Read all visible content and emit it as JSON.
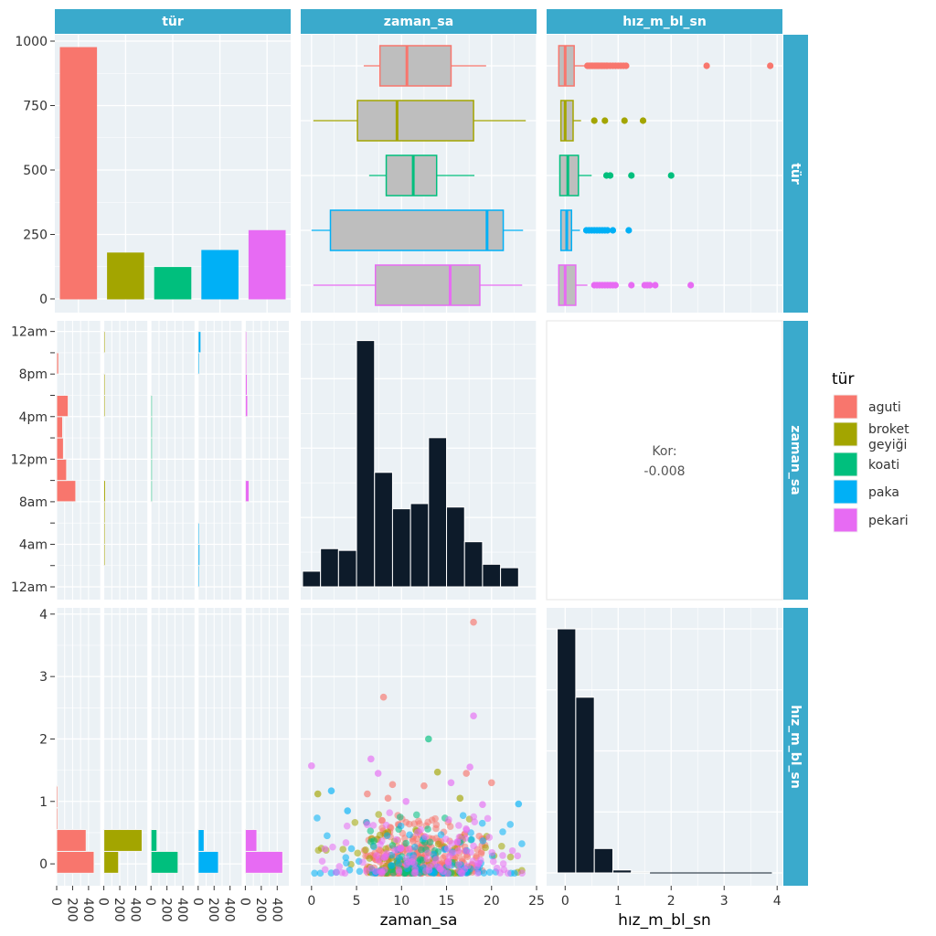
{
  "chart_data": {
    "type": "scatter-matrix",
    "variables": [
      "tür",
      "zaman_sa",
      "hız_m_bl_sn"
    ],
    "strip_color": "#3AAACC",
    "legend": {
      "title": "tür",
      "position": "right",
      "entries": [
        {
          "label": "aguti",
          "color": "#F8766D"
        },
        {
          "label": "broket geyiği",
          "color": "#A3A500"
        },
        {
          "label": "koati",
          "color": "#00BF7D"
        },
        {
          "label": "paka",
          "color": "#00B0F6"
        },
        {
          "label": "pekari",
          "color": "#E76BF3"
        }
      ]
    },
    "species": [
      "aguti",
      "broket geyiği",
      "koati",
      "paka",
      "pekari"
    ],
    "colors": [
      "#F8766D",
      "#A3A500",
      "#00BF7D",
      "#00B0F6",
      "#E76BF3"
    ],
    "counts": {
      "values": [
        975,
        178,
        122,
        188,
        265
      ],
      "ylim": [
        0,
        1050
      ],
      "yticks": [
        0,
        250,
        500,
        750,
        1000
      ]
    },
    "zaman_ticks": {
      "values": [
        0,
        5,
        10,
        15,
        20,
        25
      ],
      "labels": [
        "0",
        "5",
        "10",
        "15",
        "20",
        "25"
      ],
      "lim": [
        -1.2,
        25
      ]
    },
    "time_ticks": {
      "values": [
        0,
        4,
        8,
        12,
        16,
        20,
        24
      ],
      "labels": [
        "12am",
        "4am",
        "8am",
        "12pm",
        "4pm",
        "8pm",
        "12am"
      ],
      "lim": [
        -1.2,
        25
      ]
    },
    "hiz_ticks": {
      "values": [
        0,
        1,
        2,
        3,
        4
      ],
      "labels": [
        "0",
        "1",
        "2",
        "3",
        "4"
      ],
      "lim": [
        -0.35,
        4.1
      ]
    },
    "facet_count_ticks": {
      "values": [
        0,
        200,
        400
      ],
      "labels": [
        "0",
        "200",
        "400"
      ],
      "max": 500
    },
    "box_zaman": [
      {
        "q1": 7.6,
        "med": 10.6,
        "q3": 15.5,
        "lo": 5.8,
        "hi": 19.4
      },
      {
        "q1": 5.1,
        "med": 9.5,
        "q3": 18.0,
        "lo": 0.2,
        "hi": 23.8
      },
      {
        "q1": 8.3,
        "med": 11.3,
        "q3": 13.9,
        "lo": 6.4,
        "hi": 18.1
      },
      {
        "q1": 2.1,
        "med": 19.5,
        "q3": 21.3,
        "lo": 0.0,
        "hi": 23.5
      },
      {
        "q1": 7.1,
        "med": 15.4,
        "q3": 18.7,
        "lo": 0.2,
        "hi": 23.4
      }
    ],
    "box_hiz": [
      {
        "q1": -0.12,
        "med": 0.0,
        "q3": 0.17,
        "lo": -0.12,
        "hi": 0.37,
        "out": [
          0.42,
          0.45,
          0.48,
          0.5,
          0.52,
          0.55,
          0.58,
          0.6,
          0.62,
          0.65,
          0.68,
          0.7,
          0.72,
          0.75,
          0.78,
          0.8,
          0.85,
          0.9,
          0.95,
          1.0,
          1.05,
          1.1,
          1.15,
          2.67,
          3.87
        ]
      },
      {
        "q1": -0.08,
        "med": 0.0,
        "q3": 0.15,
        "lo": -0.08,
        "hi": 0.3,
        "out": [
          0.55,
          0.75,
          1.12,
          1.47
        ]
      },
      {
        "q1": -0.1,
        "med": 0.05,
        "q3": 0.25,
        "lo": -0.1,
        "hi": 0.5,
        "out": [
          0.78,
          0.85,
          1.25,
          2.0
        ]
      },
      {
        "q1": -0.08,
        "med": 0.03,
        "q3": 0.12,
        "lo": -0.08,
        "hi": 0.28,
        "out": [
          0.4,
          0.45,
          0.5,
          0.55,
          0.6,
          0.65,
          0.7,
          0.75,
          0.8,
          0.9,
          1.2
        ]
      },
      {
        "q1": -0.12,
        "med": 0.0,
        "q3": 0.2,
        "lo": -0.12,
        "hi": 0.42,
        "out": [
          0.55,
          0.6,
          0.65,
          0.7,
          0.75,
          0.8,
          0.85,
          0.9,
          0.95,
          1.25,
          1.5,
          1.55,
          1.6,
          1.7,
          2.37
        ]
      }
    ],
    "hist_zaman": {
      "bin_starts": [
        0,
        2,
        4,
        6,
        8,
        10,
        12,
        14,
        16,
        18,
        20,
        22
      ],
      "bin_width": 2,
      "counts": [
        45,
        110,
        105,
        710,
        330,
        225,
        240,
        430,
        230,
        130,
        65,
        55
      ],
      "ymax": 730
    },
    "hist_hiz": {
      "bin_starts": [
        -0.15,
        0.2,
        0.55,
        0.9,
        1.25
      ],
      "bin_width": 0.35,
      "counts": [
        1000,
        720,
        100,
        12,
        4
      ],
      "ymax": 1030
    },
    "facet_time_bins": [
      [
        {
          "y": 8,
          "c": 240
        },
        {
          "y": 10,
          "c": 125
        },
        {
          "y": 12,
          "c": 85
        },
        {
          "y": 14,
          "c": 75
        },
        {
          "y": 16,
          "c": 145
        },
        {
          "y": 20,
          "c": 25
        }
      ],
      [
        {
          "y": 2,
          "c": 12
        },
        {
          "y": 4,
          "c": 10
        },
        {
          "y": 6,
          "c": 8
        },
        {
          "y": 8,
          "c": 22
        },
        {
          "y": 16,
          "c": 14
        },
        {
          "y": 18,
          "c": 8
        },
        {
          "y": 22,
          "c": 6
        }
      ],
      [
        {
          "y": 8,
          "c": 10
        },
        {
          "y": 10,
          "c": 12
        },
        {
          "y": 12,
          "c": 10
        },
        {
          "y": 14,
          "c": 8
        },
        {
          "y": 16,
          "c": 10
        }
      ],
      [
        {
          "y": 0,
          "c": 8
        },
        {
          "y": 2,
          "c": 22
        },
        {
          "y": 4,
          "c": 12
        },
        {
          "y": 20,
          "c": 18
        },
        {
          "y": 22,
          "c": 35
        }
      ],
      [
        {
          "y": 8,
          "c": 48
        },
        {
          "y": 16,
          "c": 30
        },
        {
          "y": 18,
          "c": 25
        },
        {
          "y": 20,
          "c": 12
        },
        {
          "y": 22,
          "c": 8
        }
      ]
    ],
    "facet_hiz_bins": [
      [
        {
          "y": -0.15,
          "c": 470
        },
        {
          "y": 0.2,
          "c": 370
        },
        {
          "y": 0.55,
          "c": 10
        },
        {
          "y": 0.9,
          "c": 4
        }
      ],
      [
        {
          "y": -0.15,
          "c": 185
        },
        {
          "y": 0.2,
          "c": 480
        }
      ],
      [
        {
          "y": -0.15,
          "c": 340
        },
        {
          "y": 0.2,
          "c": 75
        }
      ],
      [
        {
          "y": -0.15,
          "c": 255
        },
        {
          "y": 0.2,
          "c": 75
        }
      ],
      [
        {
          "y": -0.15,
          "c": 470
        },
        {
          "y": 0.2,
          "c": 145
        }
      ]
    ],
    "scatter_outliers": [
      {
        "x": 0.0,
        "y": 1.57,
        "s": 4
      },
      {
        "x": 0.7,
        "y": 1.12,
        "s": 1
      },
      {
        "x": 2.2,
        "y": 1.17,
        "s": 3
      },
      {
        "x": 6.2,
        "y": 1.12,
        "s": 0
      },
      {
        "x": 6.6,
        "y": 1.68,
        "s": 4
      },
      {
        "x": 7.4,
        "y": 1.45,
        "s": 4
      },
      {
        "x": 8.0,
        "y": 2.67,
        "s": 0
      },
      {
        "x": 9.0,
        "y": 1.27,
        "s": 0
      },
      {
        "x": 13.0,
        "y": 2.0,
        "s": 2
      },
      {
        "x": 12.5,
        "y": 1.25,
        "s": 0
      },
      {
        "x": 14.0,
        "y": 1.47,
        "s": 1
      },
      {
        "x": 17.2,
        "y": 1.45,
        "s": 0
      },
      {
        "x": 17.6,
        "y": 1.55,
        "s": 4
      },
      {
        "x": 18.0,
        "y": 3.87,
        "s": 0
      },
      {
        "x": 18.0,
        "y": 2.37,
        "s": 4
      },
      {
        "x": 23.0,
        "y": 0.96,
        "s": 3
      },
      {
        "x": 10.5,
        "y": 1.0,
        "s": 4
      },
      {
        "x": 15.5,
        "y": 1.3,
        "s": 4
      },
      {
        "x": 16.5,
        "y": 1.05,
        "s": 1
      },
      {
        "x": 19.0,
        "y": 0.95,
        "s": 4
      },
      {
        "x": 8.5,
        "y": 1.05,
        "s": 0
      },
      {
        "x": 4.0,
        "y": 0.85,
        "s": 3
      },
      {
        "x": 20.0,
        "y": 1.3,
        "s": 0
      }
    ],
    "scatter_cloud": {
      "n_per_species": [
        320,
        70,
        60,
        80,
        110
      ],
      "zaman_box_ref": "box_zaman",
      "ymin": -0.15,
      "ymax": 0.9
    },
    "corr_label": {
      "line1": "Kor:",
      "line2": "-0.008"
    },
    "xlabels": {
      "col2": "zaman_sa",
      "col3": "hız_m_bl_sn"
    },
    "strips": {
      "top": [
        "tür",
        "zaman_sa",
        "hız_m_bl_sn"
      ],
      "right": [
        "tür",
        "zaman_sa",
        "hız_m_bl_sn"
      ]
    }
  }
}
